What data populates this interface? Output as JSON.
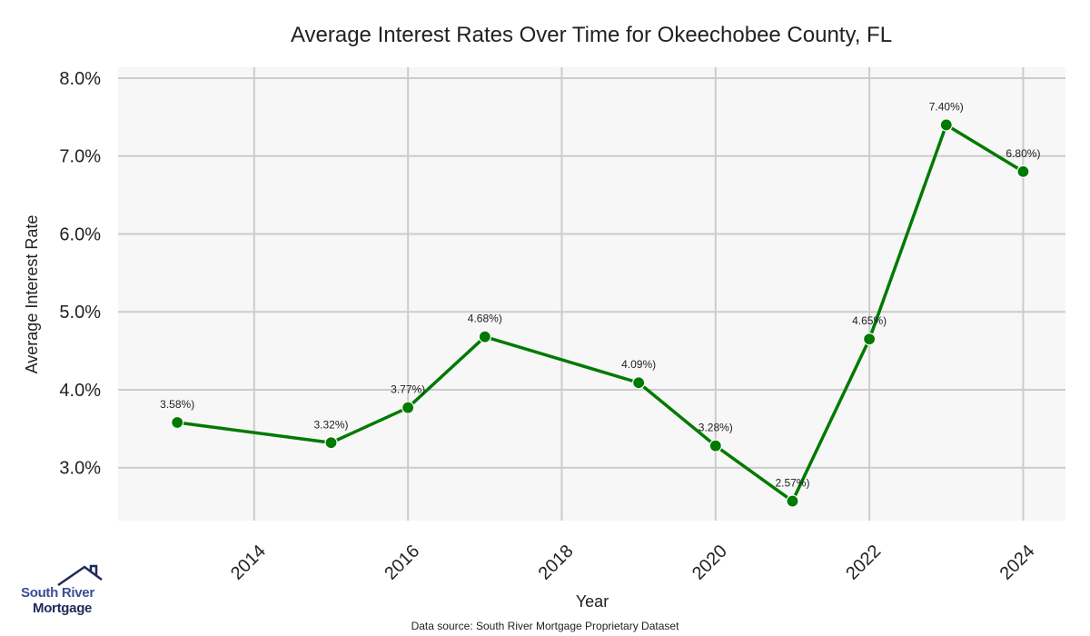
{
  "chart_data": {
    "type": "line",
    "title": "Average Interest Rates Over Time for Okeechobee County, FL",
    "xlabel": "Year",
    "ylabel": "Average Interest Rate",
    "x": [
      2013,
      2015,
      2016,
      2017,
      2019,
      2020,
      2021,
      2022,
      2023,
      2024
    ],
    "series": [
      {
        "name": "Average Interest Rate",
        "color": "#007a00",
        "values": [
          3.58,
          3.32,
          3.77,
          4.68,
          4.09,
          3.28,
          2.57,
          4.65,
          7.4,
          6.8
        ],
        "labels": [
          "3.58%)",
          "3.32%)",
          "3.77%)",
          "4.68%)",
          "4.09%)",
          "3.28%)",
          "2.57%)",
          "4.65%)",
          "7.40%)",
          "6.80%)"
        ]
      }
    ],
    "xticks": [
      2014,
      2016,
      2018,
      2020,
      2022,
      2024
    ],
    "xtick_labels": [
      "2014",
      "2016",
      "2018",
      "2020",
      "2022",
      "2024"
    ],
    "yticks": [
      3.0,
      4.0,
      5.0,
      6.0,
      7.0,
      8.0
    ],
    "ytick_labels": [
      "3.0%",
      "4.0%",
      "5.0%",
      "6.0%",
      "7.0%",
      "8.0%"
    ],
    "xlim": [
      2012.23,
      2024.55
    ],
    "ylim": [
      2.32,
      8.14
    ],
    "grid": true,
    "legend": "none",
    "background": "#f7f7f7",
    "grid_color": "#cccccc"
  },
  "footer": {
    "source": "Data source: South River Mortgage Proprietary Dataset"
  },
  "logo": {
    "line1": "South River",
    "line2": "Mortgage"
  }
}
